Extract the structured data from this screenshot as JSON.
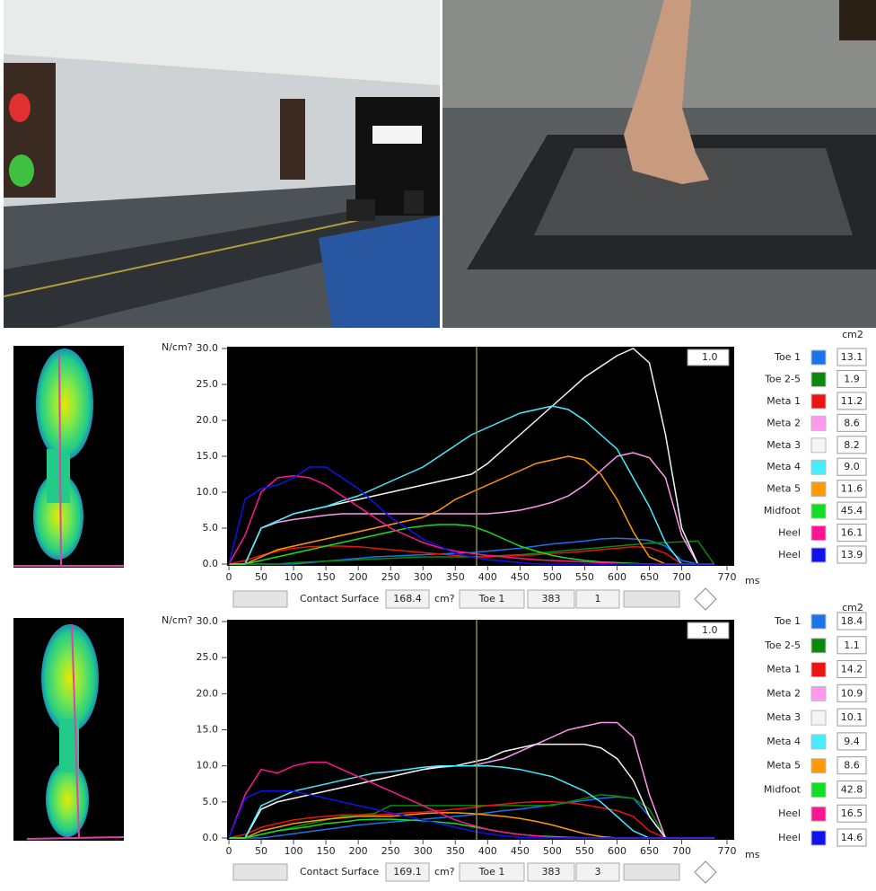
{
  "chart_data": [
    {
      "type": "line",
      "y_label": "N/cm?",
      "x_unit": "ms",
      "area_unit": "cm2",
      "zoom": "1.0",
      "xlim": [
        0,
        770
      ],
      "xticks": [
        0,
        50,
        100,
        150,
        200,
        250,
        300,
        350,
        400,
        450,
        500,
        550,
        600,
        650,
        700,
        770
      ],
      "ylim": [
        0,
        30
      ],
      "yticks": [
        {
          "value": 0,
          "label": "0.0"
        },
        {
          "value": 5,
          "label": "5.0"
        },
        {
          "value": 10,
          "label": "10.0"
        },
        {
          "value": 15,
          "label": "15.0"
        },
        {
          "value": 20,
          "label": "20.0"
        },
        {
          "value": 25,
          "label": "25.0"
        },
        {
          "value": 30,
          "label": "30.0"
        }
      ],
      "cursor_x": 383,
      "contact_surface_label": "Contact Surface",
      "contact_surface": "168.4",
      "contact_unit": "cm?",
      "cursor_series": "Toe 1",
      "cursor_value": 383,
      "cursor_index": 1,
      "x": [
        0,
        25,
        50,
        75,
        100,
        125,
        150,
        175,
        200,
        225,
        250,
        275,
        300,
        325,
        350,
        375,
        400,
        425,
        450,
        475,
        500,
        525,
        550,
        575,
        600,
        625,
        650,
        675,
        700,
        725,
        750
      ],
      "series": [
        {
          "name": "Toe 1",
          "color": "#1a73e8",
          "area": "13.1",
          "values": [
            0,
            0,
            0,
            0,
            0,
            0.2,
            0.4,
            0.6,
            0.8,
            1,
            1.1,
            1.2,
            1.3,
            1.4,
            1.5,
            1.6,
            1.8,
            2,
            2.2,
            2.5,
            2.8,
            3,
            3.2,
            3.5,
            3.6,
            3.5,
            3.3,
            2.5,
            0.5,
            0,
            0
          ]
        },
        {
          "name": "Toe 2-5",
          "color": "#0a8a0a",
          "area": "1.9",
          "values": [
            0,
            0,
            0,
            0,
            0.2,
            0.3,
            0.4,
            0.5,
            0.6,
            0.7,
            0.8,
            0.9,
            1,
            1,
            1,
            1,
            1.1,
            1.2,
            1.3,
            1.5,
            1.7,
            1.9,
            2.1,
            2.3,
            2.5,
            2.7,
            2.9,
            3,
            3.1,
            3.2,
            0
          ]
        },
        {
          "name": "Meta 1",
          "color": "#ee1111",
          "area": "11.2",
          "values": [
            0,
            0.5,
            1.2,
            1.8,
            2.2,
            2.4,
            2.5,
            2.5,
            2.4,
            2.2,
            2,
            1.8,
            1.6,
            1.4,
            1.2,
            1,
            1,
            1.1,
            1.2,
            1.3,
            1.5,
            1.6,
            1.8,
            2,
            2.2,
            2.4,
            2.3,
            1.5,
            0,
            0,
            0
          ]
        },
        {
          "name": "Meta 2",
          "color": "#ff99ee",
          "area": "8.6",
          "values": [
            0,
            0,
            5,
            5.8,
            6.2,
            6.5,
            6.8,
            7,
            7,
            7,
            7,
            7,
            7,
            7,
            7,
            7,
            7,
            7.2,
            7.5,
            8,
            8.6,
            9.5,
            11,
            13,
            15,
            15.5,
            14.8,
            12,
            4,
            0,
            0
          ]
        },
        {
          "name": "Meta 3",
          "color": "#f4f4f4",
          "area": "8.2",
          "values": [
            0,
            0,
            5,
            6,
            7,
            7.5,
            8,
            8.5,
            9,
            9.5,
            10,
            10.5,
            11,
            11.5,
            12,
            12.5,
            14,
            16,
            18,
            20,
            22,
            24,
            26,
            27.5,
            29,
            30,
            28,
            18,
            5,
            0,
            0
          ]
        },
        {
          "name": "Meta 4",
          "color": "#44eeff",
          "area": "9.0",
          "values": [
            0,
            0,
            5,
            6,
            7,
            7.5,
            8,
            8.8,
            9.5,
            10.5,
            11.5,
            12.5,
            13.5,
            15,
            16.5,
            18,
            19,
            20,
            21,
            21.5,
            22,
            21.5,
            20,
            18,
            16,
            12,
            8,
            3,
            0,
            0,
            0
          ]
        },
        {
          "name": "Meta 5",
          "color": "#ff9900",
          "area": "11.6",
          "values": [
            0,
            0,
            1,
            2,
            2.5,
            3,
            3.5,
            4,
            4.5,
            5,
            5.5,
            6,
            6.5,
            7.5,
            9,
            10,
            11,
            12,
            13,
            14,
            14.5,
            15,
            14.5,
            12.5,
            9,
            4.5,
            1,
            0,
            0,
            0,
            0
          ]
        },
        {
          "name": "Midfoot",
          "color": "#11dd22",
          "area": "45.4",
          "values": [
            0,
            0,
            0.5,
            1,
            1.5,
            2,
            2.5,
            3,
            3.5,
            4,
            4.5,
            5,
            5.3,
            5.5,
            5.5,
            5.3,
            4.5,
            3.5,
            2.5,
            1.8,
            1.2,
            0.8,
            0.5,
            0.3,
            0.2,
            0.1,
            0,
            0,
            0,
            0,
            0
          ]
        },
        {
          "name": "Heel",
          "color": "#ff1493",
          "area": "16.1",
          "values": [
            0,
            4,
            10,
            12,
            12.3,
            12,
            11,
            9.5,
            8,
            6.5,
            5,
            4,
            3,
            2.3,
            1.8,
            1.5,
            1.2,
            1,
            0.8,
            0.6,
            0.5,
            0.4,
            0.3,
            0.2,
            0.1,
            0,
            0,
            0,
            0,
            0,
            0
          ]
        },
        {
          "name": "Heel",
          "color": "#1111ee",
          "area": "13.9",
          "values": [
            0,
            9,
            10.5,
            11,
            12,
            13.5,
            13.5,
            12,
            10.5,
            8.5,
            6.5,
            5,
            3.5,
            2.5,
            1.5,
            1,
            0.6,
            0.4,
            0.2,
            0,
            0,
            0,
            0,
            0,
            0,
            0,
            0,
            0,
            0,
            0,
            0
          ]
        }
      ]
    },
    {
      "type": "line",
      "y_label": "N/cm?",
      "x_unit": "ms",
      "area_unit": "cm2",
      "zoom": "1.0",
      "xlim": [
        0,
        770
      ],
      "xticks": [
        0,
        50,
        100,
        150,
        200,
        250,
        300,
        350,
        400,
        450,
        500,
        550,
        600,
        650,
        700,
        770
      ],
      "ylim": [
        0,
        30
      ],
      "yticks": [
        {
          "value": 0,
          "label": "0.0"
        },
        {
          "value": 5,
          "label": "5.0"
        },
        {
          "value": 10,
          "label": "10.0"
        },
        {
          "value": 15,
          "label": "15.0"
        },
        {
          "value": 20,
          "label": "20.0"
        },
        {
          "value": 25,
          "label": "25.0"
        },
        {
          "value": 30,
          "label": "30.0"
        }
      ],
      "cursor_x": 383,
      "contact_surface_label": "Contact Surface",
      "contact_surface": "169.1",
      "contact_unit": "cm?",
      "cursor_series": "Toe 1",
      "cursor_value": 383,
      "cursor_index": 3,
      "x": [
        0,
        25,
        50,
        75,
        100,
        125,
        150,
        175,
        200,
        225,
        250,
        275,
        300,
        325,
        350,
        375,
        400,
        425,
        450,
        475,
        500,
        525,
        550,
        575,
        600,
        625,
        650,
        675,
        700,
        725,
        750
      ],
      "series": [
        {
          "name": "Toe 1",
          "color": "#1a73e8",
          "area": "18.4",
          "values": [
            0,
            0,
            0,
            0.3,
            0.6,
            0.9,
            1.2,
            1.5,
            1.8,
            2,
            2.2,
            2.4,
            2.6,
            2.8,
            3,
            3.2,
            3.5,
            3.8,
            4,
            4.3,
            4.6,
            4.9,
            5.2,
            5.5,
            5.7,
            5.5,
            3,
            0,
            0,
            0,
            0
          ]
        },
        {
          "name": "Toe 2-5",
          "color": "#0a8a0a",
          "area": "1.1",
          "values": [
            0,
            0,
            0.5,
            1,
            1.5,
            2,
            2.5,
            3,
            3.2,
            3.4,
            4.5,
            4.5,
            4.5,
            4.5,
            4.5,
            4.5,
            4.5,
            4.5,
            4.5,
            4.5,
            4.5,
            5,
            5.5,
            6,
            5.8,
            5.5,
            4,
            0,
            0,
            0,
            0
          ]
        },
        {
          "name": "Meta 1",
          "color": "#ee1111",
          "area": "14.2",
          "values": [
            0,
            0.5,
            1.5,
            2,
            2.5,
            2.8,
            3,
            3.2,
            3.2,
            3.2,
            3.3,
            3.5,
            3.6,
            3.8,
            4,
            4.2,
            4.5,
            4.7,
            4.9,
            5,
            5,
            4.9,
            4.6,
            4.2,
            3.8,
            3,
            1,
            0,
            0,
            0,
            0
          ]
        },
        {
          "name": "Meta 2",
          "color": "#ff99ee",
          "area": "10.9",
          "values": [
            0,
            0,
            4,
            5,
            5.5,
            6,
            6.5,
            7,
            7.5,
            8,
            8.5,
            9,
            9.5,
            10,
            10,
            10,
            10.5,
            11,
            12,
            13,
            14,
            15,
            15.5,
            16,
            16,
            14,
            6,
            0,
            0,
            0,
            0
          ]
        },
        {
          "name": "Meta 3",
          "color": "#f4f4f4",
          "area": "10.1",
          "values": [
            0,
            0,
            4,
            5,
            5.5,
            6,
            6.5,
            7,
            7.5,
            8,
            8.5,
            9,
            9.5,
            9.8,
            10,
            10.5,
            11,
            12,
            12.5,
            13,
            13,
            13,
            13,
            12.5,
            11,
            8,
            3,
            0,
            0,
            0,
            0
          ]
        },
        {
          "name": "Meta 4",
          "color": "#44eeff",
          "area": "9.4",
          "values": [
            0,
            0,
            4.5,
            5.5,
            6.5,
            7,
            7.5,
            8,
            8.5,
            9,
            9.2,
            9.5,
            9.8,
            10,
            10,
            10,
            10,
            9.8,
            9.5,
            9,
            8.5,
            7.5,
            6.5,
            5,
            3,
            1,
            0,
            0,
            0,
            0,
            0
          ]
        },
        {
          "name": "Meta 5",
          "color": "#ff9900",
          "area": "8.6",
          "values": [
            0,
            0,
            1,
            1.5,
            2,
            2.3,
            2.6,
            2.8,
            3,
            3,
            3,
            3.2,
            3.4,
            3.5,
            3.5,
            3.4,
            3.2,
            3,
            2.7,
            2.3,
            1.8,
            1.2,
            0.6,
            0.2,
            0,
            0,
            0,
            0,
            0,
            0,
            0
          ]
        },
        {
          "name": "Midfoot",
          "color": "#11dd22",
          "area": "42.8",
          "values": [
            0,
            0,
            0.5,
            1,
            1.3,
            1.6,
            2,
            2.2,
            2.5,
            2.6,
            2.6,
            2.5,
            2.4,
            2.2,
            2,
            1.6,
            1.2,
            0.8,
            0.5,
            0.3,
            0.2,
            0.1,
            0,
            0,
            0,
            0,
            0,
            0,
            0,
            0,
            0
          ]
        },
        {
          "name": "Heel",
          "color": "#ff1493",
          "area": "16.5",
          "values": [
            0,
            6,
            9.5,
            9,
            10,
            10.5,
            10.5,
            9.5,
            8.5,
            7.5,
            6.5,
            5.5,
            4.5,
            3.5,
            2.5,
            1.8,
            1.2,
            0.8,
            0.5,
            0.3,
            0.1,
            0,
            0,
            0,
            0,
            0,
            0,
            0,
            0,
            0,
            0
          ]
        },
        {
          "name": "Heel",
          "color": "#1111ee",
          "area": "14.6",
          "values": [
            0,
            5.5,
            6.5,
            6.5,
            6.5,
            6,
            5.5,
            5,
            4.5,
            4,
            3.5,
            3,
            2.5,
            2,
            1.5,
            1,
            0.6,
            0.3,
            0.1,
            0,
            0,
            0,
            0,
            0,
            0,
            0,
            0,
            0,
            0,
            0,
            0
          ]
        }
      ]
    }
  ]
}
